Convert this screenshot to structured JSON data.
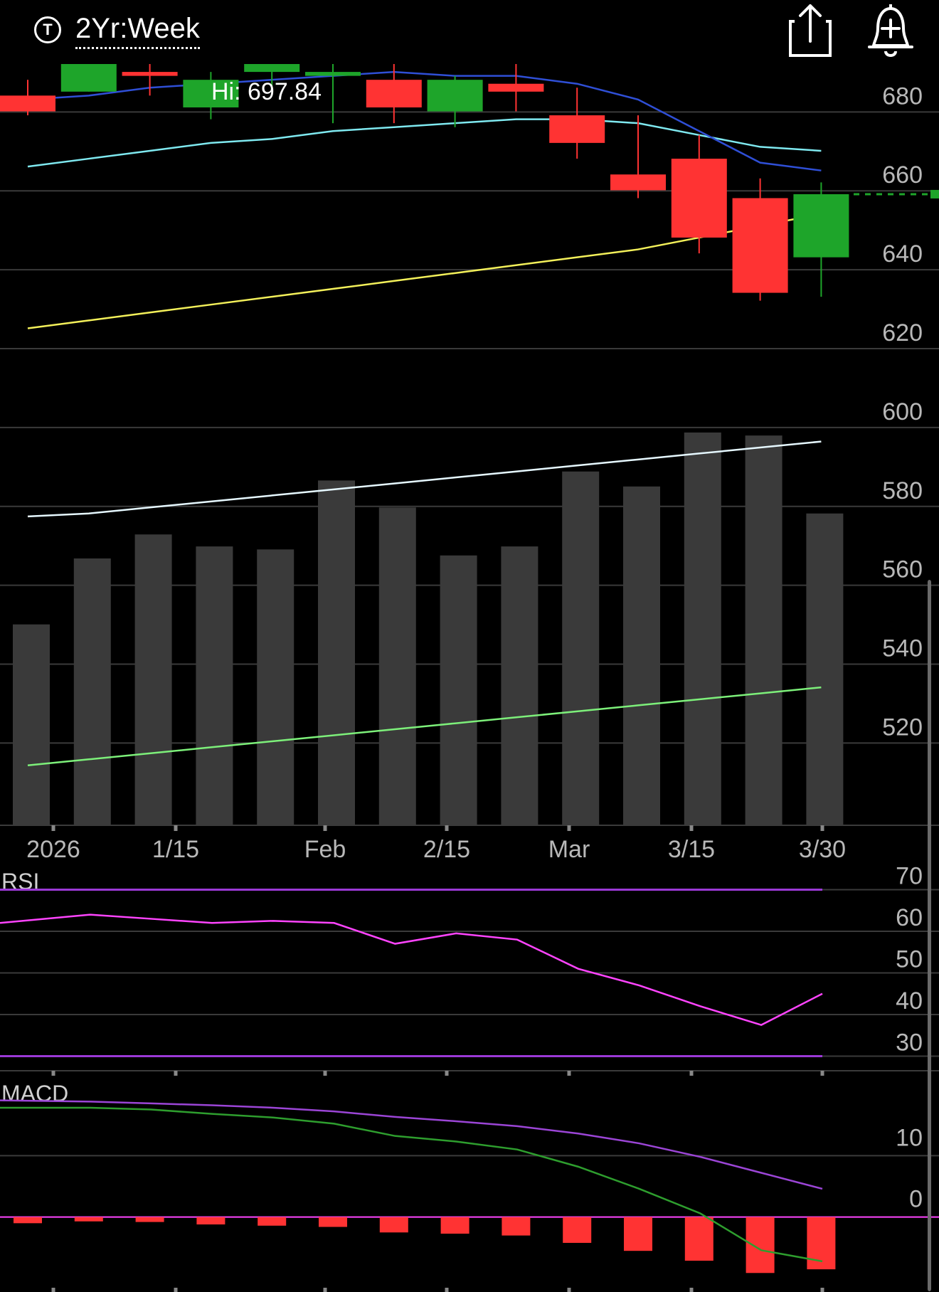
{
  "header": {
    "ticker_icon": "T",
    "range_label": "2Yr:Week",
    "share_icon": "share-icon",
    "alert_icon": "bell-plus-icon"
  },
  "colors": {
    "up": "#1ea52a",
    "down": "#ff3333",
    "sma_short": "#2f4fd6",
    "sma_mid": "#7fe9f0",
    "sma_long": "#f3f05a",
    "volume": "#3a3a3a",
    "vol_avg_short": "#e6f8ff",
    "vol_avg_long": "#7df07a",
    "rsi": "#ff44ff",
    "rsi_bounds": "#9b39d6",
    "macd": "#2e9e2e",
    "signal": "#9b45d6"
  },
  "chart_data": [
    {
      "type": "candlestick",
      "hi_label": "Hi: 697.84",
      "x_tick_labels": [
        "2026",
        "1/15",
        "Feb",
        "2/15",
        "Mar",
        "3/15",
        "3/30"
      ],
      "y_tick_labels": [
        "680",
        "660",
        "640",
        "620",
        "600",
        "580",
        "560",
        "540",
        "520"
      ],
      "ylim": [
        495,
        688
      ],
      "candles": [
        {
          "open": 680,
          "close": 676,
          "high": 684,
          "low": 675
        },
        {
          "open": 681,
          "close": 688,
          "high": 691,
          "low": 681
        },
        {
          "open": 686,
          "close": 685,
          "high": 690,
          "low": 680
        },
        {
          "open": 677,
          "close": 684,
          "high": 686,
          "low": 674
        },
        {
          "open": 686,
          "close": 688,
          "high": 694,
          "low": 680
        },
        {
          "open": 685,
          "close": 686,
          "high": 690,
          "low": 673
        },
        {
          "open": 684,
          "close": 677,
          "high": 692,
          "low": 673
        },
        {
          "open": 676,
          "close": 684,
          "high": 685,
          "low": 672
        },
        {
          "open": 683,
          "close": 681,
          "high": 688,
          "low": 676
        },
        {
          "open": 675,
          "close": 668,
          "high": 682,
          "low": 664
        },
        {
          "open": 660,
          "close": 656,
          "high": 675,
          "low": 654
        },
        {
          "open": 664,
          "close": 644,
          "high": 670,
          "low": 640
        },
        {
          "open": 654,
          "close": 630,
          "high": 659,
          "low": 628
        },
        {
          "open": 639,
          "close": 655,
          "high": 658,
          "low": 629
        }
      ],
      "last_price": 655,
      "sma_short": [
        679,
        680,
        682,
        683,
        684,
        685,
        686,
        685,
        685,
        683,
        679,
        671,
        663,
        661
      ],
      "sma_mid": [
        662,
        664,
        666,
        668,
        669,
        671,
        672,
        673,
        674,
        674,
        673,
        670,
        667,
        666
      ],
      "sma_long": [
        621,
        623,
        625,
        627,
        629,
        631,
        633,
        635,
        637,
        639,
        641,
        644,
        647,
        650
      ]
    },
    {
      "type": "bar",
      "name": "volume",
      "values": [
        67,
        89,
        97,
        93,
        92,
        115,
        106,
        90,
        93,
        118,
        113,
        131,
        130,
        104
      ],
      "ylim": [
        0,
        140
      ],
      "avg_short": [
        103,
        104,
        106,
        108,
        110,
        112,
        114,
        116,
        118,
        120,
        122,
        124,
        126,
        128
      ],
      "avg_long": [
        20,
        22,
        24,
        26,
        28,
        30,
        32,
        34,
        36,
        38,
        40,
        42,
        44,
        46
      ]
    },
    {
      "type": "line",
      "name": "RSI",
      "y_tick_labels": [
        "70",
        "60",
        "50",
        "40",
        "30"
      ],
      "ylim": [
        26.5,
        73.5
      ],
      "overbought": 70,
      "oversold": 30,
      "values": [
        62,
        64,
        63,
        62,
        62.5,
        62,
        57,
        59.5,
        58,
        51,
        47,
        42,
        37.5,
        45
      ]
    },
    {
      "type": "bar",
      "name": "MACD",
      "y_tick_labels": [
        "10",
        "0"
      ],
      "ylim": [
        -11.5,
        21.5
      ],
      "macd": [
        17.8,
        17.8,
        17.5,
        16.8,
        16.2,
        15.2,
        13.2,
        12.3,
        11.0,
        8.2,
        4.6,
        0.6,
        -5.4,
        -7.2
      ],
      "signal": [
        19.0,
        18.8,
        18.5,
        18.2,
        17.8,
        17.2,
        16.3,
        15.6,
        14.8,
        13.6,
        12.0,
        9.8,
        7.2,
        4.6
      ],
      "histogram": [
        -1.0,
        -0.7,
        -0.8,
        -1.2,
        -1.4,
        -1.6,
        -2.5,
        -2.7,
        -3.0,
        -4.2,
        -5.5,
        -7.1,
        -9.1,
        -8.5
      ],
      "x_ticks": 7
    }
  ]
}
